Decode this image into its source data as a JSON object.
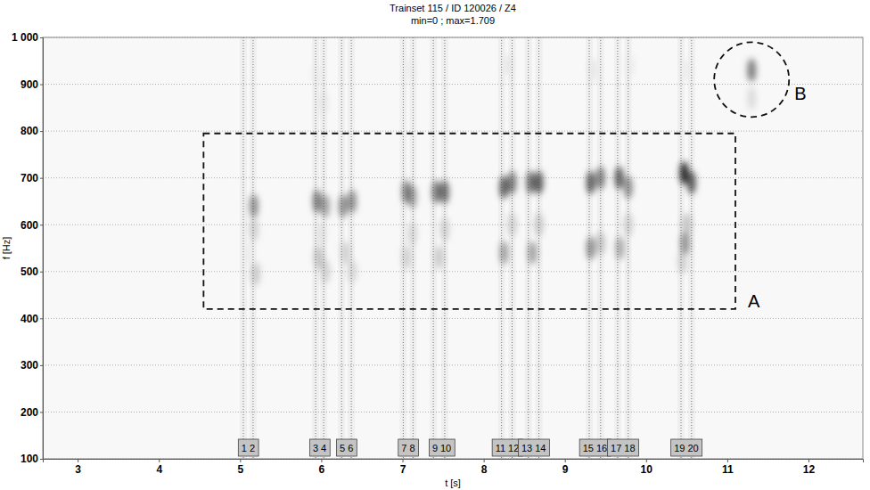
{
  "chart_data": {
    "type": "heatmap",
    "title": "Trainset 115 / ID 120026 / Z4",
    "subtitle": "min=0 ; max=1.709",
    "x_label": "t [s]",
    "y_label": "f [Hz]",
    "xlim": [
      2.57,
      12.67
    ],
    "ylim": [
      100,
      1000
    ],
    "xticks": [
      3,
      4,
      5,
      6,
      7,
      8,
      9,
      10,
      11,
      12
    ],
    "yticks": [
      100,
      200,
      300,
      400,
      500,
      600,
      700,
      800,
      900,
      {
        "value": 1000,
        "label": "1 000"
      }
    ],
    "grid": true,
    "color_range": [
      0,
      1.709
    ],
    "cells": {
      "t": [
        5.17,
        5.17,
        5.19,
        5.1,
        5.95,
        6.05,
        5.97,
        6.05,
        6.0,
        6.27,
        6.38,
        6.3,
        6.38,
        7.05,
        7.12,
        7.05,
        7.12,
        7.42,
        7.52,
        7.45,
        7.52,
        8.25,
        8.35,
        8.25,
        8.35,
        8.58,
        8.68,
        8.6,
        8.68,
        9.32,
        9.44,
        9.32,
        9.44,
        9.67,
        9.78,
        9.68,
        9.78,
        10.47,
        10.56,
        10.48,
        10.5,
        10.45,
        11.3,
        11.3,
        5.95,
        6.02,
        7.1,
        8.3,
        9.35,
        9.8,
        10.5
      ],
      "f": [
        640,
        590,
        495,
        540,
        650,
        640,
        530,
        500,
        580,
        640,
        650,
        540,
        500,
        670,
        660,
        530,
        580,
        670,
        670,
        530,
        590,
        680,
        690,
        540,
        600,
        690,
        690,
        540,
        600,
        690,
        700,
        550,
        560,
        700,
        680,
        550,
        600,
        710,
        690,
        560,
        600,
        520,
        930,
        870,
        920,
        860,
        930,
        940,
        930,
        940,
        930
      ],
      "value": [
        0.9,
        0.5,
        0.55,
        0.25,
        1.0,
        0.8,
        0.6,
        0.5,
        0.35,
        0.9,
        0.9,
        0.5,
        0.45,
        1.0,
        0.8,
        0.5,
        0.45,
        1.05,
        1.1,
        0.55,
        0.5,
        1.2,
        1.0,
        0.8,
        0.5,
        1.1,
        1.2,
        0.8,
        0.55,
        1.2,
        1.0,
        0.9,
        0.6,
        1.2,
        0.9,
        0.75,
        0.5,
        1.5,
        1.2,
        0.9,
        0.6,
        0.5,
        1.0,
        0.4,
        0.25,
        0.3,
        0.25,
        0.3,
        0.3,
        0.25,
        0.25
      ]
    },
    "axles": {
      "t": [
        5.04,
        5.16,
        5.93,
        6.03,
        6.25,
        6.37,
        7.01,
        7.13,
        7.38,
        7.52,
        8.22,
        8.35,
        8.55,
        8.68,
        9.3,
        9.44,
        9.65,
        9.78,
        10.43,
        10.56
      ],
      "labels": [
        "1",
        "2",
        "3",
        "4",
        "5",
        "6",
        "7",
        "8",
        "9",
        "10",
        "11",
        "12",
        "13",
        "14",
        "15",
        "16",
        "17",
        "18",
        "19",
        "20"
      ]
    },
    "annotations": [
      {
        "label": "A",
        "shape": "rect",
        "x": [
          4.55,
          11.1
        ],
        "y": [
          420,
          795
        ]
      },
      {
        "label": "B",
        "shape": "circle",
        "x": 11.3,
        "y": 910
      }
    ]
  }
}
